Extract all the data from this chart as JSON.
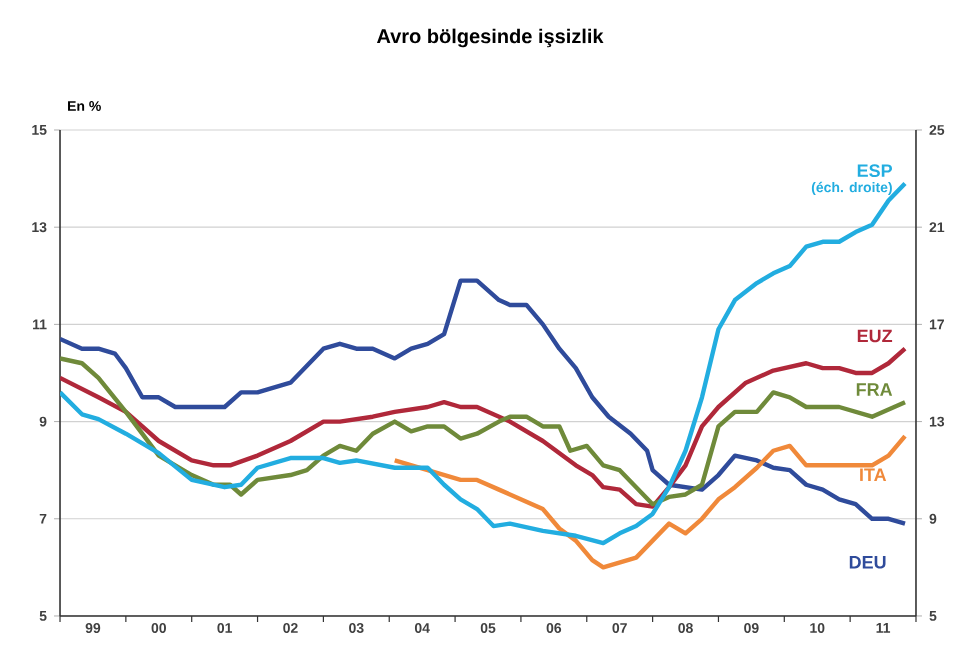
{
  "chart_data": {
    "type": "line",
    "title": "Avro bölgesinde işsizlik",
    "ylabel": "En %",
    "annotations": [
      "(éch. droite)"
    ],
    "xlim": [
      "1999",
      "2012"
    ],
    "xticks": [
      {
        "value": "1999-07",
        "label": "99"
      },
      {
        "value": "2000-07",
        "label": "00"
      },
      {
        "value": "2001-07",
        "label": "01"
      },
      {
        "value": "2002-07",
        "label": "02"
      },
      {
        "value": "2003-07",
        "label": "03"
      },
      {
        "value": "2004-07",
        "label": "04"
      },
      {
        "value": "2005-07",
        "label": "05"
      },
      {
        "value": "2006-07",
        "label": "06"
      },
      {
        "value": "2007-07",
        "label": "07"
      },
      {
        "value": "2008-07",
        "label": "08"
      },
      {
        "value": "2009-07",
        "label": "09"
      },
      {
        "value": "2010-07",
        "label": "10"
      },
      {
        "value": "2011-07",
        "label": "11"
      },
      {
        "value": "1999",
        "label": null
      },
      {
        "value": "2000",
        "label": null
      },
      {
        "value": "2001",
        "label": null
      },
      {
        "value": "2002",
        "label": null
      },
      {
        "value": "2003",
        "label": null
      },
      {
        "value": "2004",
        "label": null
      },
      {
        "value": "2005",
        "label": null
      },
      {
        "value": "2006",
        "label": null
      },
      {
        "value": "2007",
        "label": null
      },
      {
        "value": "2008",
        "label": null
      },
      {
        "value": "2009",
        "label": null
      },
      {
        "value": "2010",
        "label": null
      },
      {
        "value": "2011",
        "label": null
      },
      {
        "value": "2012",
        "label": null
      }
    ],
    "ylim": [
      5,
      15
    ],
    "yticks": [
      5,
      7,
      9,
      11,
      13,
      15
    ],
    "y2lim": [
      5,
      25
    ],
    "y2ticks": [
      5,
      9,
      13,
      17,
      21,
      25
    ],
    "grid": "y",
    "series": [
      {
        "name": "DEU",
        "color": "#2f4b9b",
        "x": [
          "1999-01",
          "1999-05",
          "1999-08",
          "1999-11",
          "2000-01",
          "2000-04",
          "2000-07",
          "2000-10",
          "2001-01",
          "2001-07",
          "2001-10",
          "2002-01",
          "2002-07",
          "2003-01",
          "2003-04",
          "2003-07",
          "2003-10",
          "2004-02",
          "2004-05",
          "2004-08",
          "2004-11",
          "2005-02",
          "2005-05",
          "2005-09",
          "2005-11",
          "2006-02",
          "2006-05",
          "2006-08",
          "2006-11",
          "2007-02",
          "2007-05",
          "2007-09",
          "2007-12",
          "2008-01",
          "2008-04",
          "2008-07",
          "2008-10",
          "2009-01",
          "2009-04",
          "2009-08",
          "2009-11",
          "2010-02",
          "2010-05",
          "2010-08",
          "2010-11",
          "2011-02",
          "2011-05",
          "2011-08",
          "2011-11"
        ],
        "values": [
          10.7,
          10.5,
          10.5,
          10.4,
          10.1,
          9.5,
          9.5,
          9.3,
          9.3,
          9.3,
          9.6,
          9.6,
          9.8,
          10.5,
          10.6,
          10.5,
          10.5,
          10.3,
          10.5,
          10.6,
          10.8,
          11.9,
          11.9,
          11.5,
          11.4,
          11.4,
          11.0,
          10.5,
          10.1,
          9.5,
          9.1,
          8.75,
          8.4,
          8.0,
          7.7,
          7.65,
          7.6,
          7.9,
          8.3,
          8.2,
          8.05,
          8.0,
          7.7,
          7.6,
          7.4,
          7.3,
          7.0,
          7.0,
          6.9
        ]
      },
      {
        "name": "EUZ",
        "color": "#b0283a",
        "x": [
          "1999-01",
          "1999-08",
          "2000-01",
          "2000-07",
          "2001-01",
          "2001-05",
          "2001-08",
          "2002-01",
          "2002-07",
          "2003-01",
          "2003-04",
          "2003-10",
          "2004-02",
          "2004-08",
          "2004-11",
          "2005-02",
          "2005-05",
          "2005-11",
          "2006-05",
          "2006-11",
          "2007-02",
          "2007-04",
          "2007-07",
          "2007-10",
          "2008-01",
          "2008-04",
          "2008-07",
          "2008-10",
          "2009-01",
          "2009-06",
          "2009-11",
          "2010-05",
          "2010-08",
          "2010-11",
          "2011-02",
          "2011-05",
          "2011-08",
          "2011-11"
        ],
        "values": [
          9.9,
          9.5,
          9.2,
          8.6,
          8.2,
          8.1,
          8.1,
          8.3,
          8.6,
          9.0,
          9.0,
          9.1,
          9.2,
          9.3,
          9.4,
          9.3,
          9.3,
          9.0,
          8.6,
          8.1,
          7.9,
          7.65,
          7.6,
          7.3,
          7.25,
          7.65,
          8.1,
          8.9,
          9.3,
          9.8,
          10.05,
          10.2,
          10.1,
          10.1,
          10.0,
          10.0,
          10.2,
          10.5
        ]
      },
      {
        "name": "FRA",
        "color": "#6f8a3a",
        "x": [
          "1999-01",
          "1999-05",
          "1999-08",
          "2000-01",
          "2000-07",
          "2001-01",
          "2001-05",
          "2001-08",
          "2001-10",
          "2002-01",
          "2002-07",
          "2002-10",
          "2003-01",
          "2003-04",
          "2003-07",
          "2003-10",
          "2004-02",
          "2004-05",
          "2004-08",
          "2004-11",
          "2005-02",
          "2005-05",
          "2005-09",
          "2005-11",
          "2006-02",
          "2006-05",
          "2006-08",
          "2006-10",
          "2007-01",
          "2007-04",
          "2007-07",
          "2007-10",
          "2008-01",
          "2008-04",
          "2008-07",
          "2008-10",
          "2009-01",
          "2009-04",
          "2009-08",
          "2009-11",
          "2010-02",
          "2010-05",
          "2010-11",
          "2011-05",
          "2011-11"
        ],
        "values": [
          10.3,
          10.2,
          9.9,
          9.2,
          8.3,
          7.9,
          7.7,
          7.7,
          7.5,
          7.8,
          7.9,
          8.0,
          8.3,
          8.5,
          8.4,
          8.75,
          9.0,
          8.8,
          8.9,
          8.9,
          8.65,
          8.75,
          9.0,
          9.1,
          9.1,
          8.9,
          8.9,
          8.4,
          8.5,
          8.1,
          8.0,
          7.65,
          7.3,
          7.45,
          7.5,
          7.7,
          8.9,
          9.2,
          9.2,
          9.6,
          9.5,
          9.3,
          9.3,
          9.1,
          9.4
        ]
      },
      {
        "name": "ITA",
        "color": "#f0893a",
        "x": [
          "2004-02",
          "2004-08",
          "2005-02",
          "2005-05",
          "2005-09",
          "2005-11",
          "2006-05",
          "2006-08",
          "2006-11",
          "2007-02",
          "2007-04",
          "2007-07",
          "2007-10",
          "2008-01",
          "2008-04",
          "2008-07",
          "2008-10",
          "2009-01",
          "2009-04",
          "2009-08",
          "2009-11",
          "2010-02",
          "2010-05",
          "2010-11",
          "2011-05",
          "2011-08",
          "2011-11"
        ],
        "values": [
          8.2,
          8.0,
          7.8,
          7.8,
          7.6,
          7.5,
          7.2,
          6.8,
          6.55,
          6.15,
          6.0,
          6.1,
          6.2,
          6.55,
          6.9,
          6.7,
          7.0,
          7.4,
          7.65,
          8.05,
          8.4,
          8.5,
          8.1,
          8.1,
          8.1,
          8.3,
          8.7
        ]
      },
      {
        "name": "ESP",
        "color": "#22ade0",
        "axis": "y2",
        "x": [
          "1999-01",
          "1999-05",
          "1999-08",
          "2000-01",
          "2000-07",
          "2001-01",
          "2001-07",
          "2001-10",
          "2002-01",
          "2002-07",
          "2002-10",
          "2003-01",
          "2003-04",
          "2003-07",
          "2004-02",
          "2004-08",
          "2004-11",
          "2005-02",
          "2005-05",
          "2005-08",
          "2005-11",
          "2006-05",
          "2006-11",
          "2007-04",
          "2007-07",
          "2007-10",
          "2008-01",
          "2008-04",
          "2008-07",
          "2008-10",
          "2009-01",
          "2009-04",
          "2009-08",
          "2009-11",
          "2010-02",
          "2010-05",
          "2010-08",
          "2010-11",
          "2011-02",
          "2011-05",
          "2011-08",
          "2011-11"
        ],
        "values": [
          14.2,
          13.3,
          13.1,
          12.5,
          11.7,
          10.6,
          10.3,
          10.4,
          11.1,
          11.5,
          11.5,
          11.5,
          11.3,
          11.4,
          11.1,
          11.1,
          10.4,
          9.8,
          9.4,
          8.7,
          8.8,
          8.5,
          8.3,
          8.0,
          8.4,
          8.7,
          9.2,
          10.3,
          11.8,
          14.0,
          16.8,
          18.0,
          18.7,
          19.1,
          19.4,
          20.2,
          20.4,
          20.4,
          20.8,
          21.1,
          22.1,
          22.8
        ]
      }
    ]
  }
}
